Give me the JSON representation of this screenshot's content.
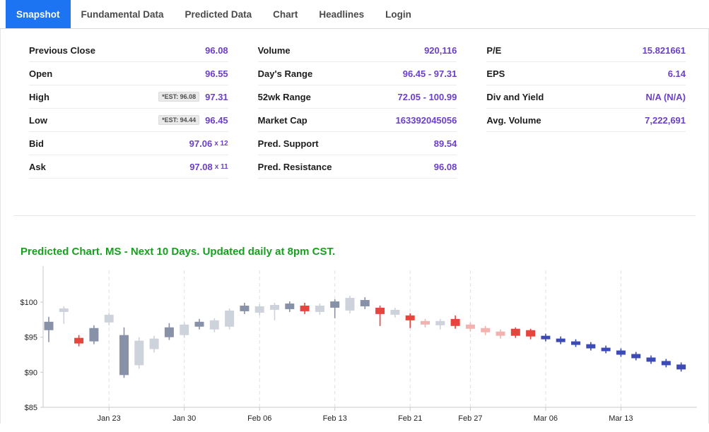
{
  "tabs": [
    {
      "label": "Snapshot",
      "active": true
    },
    {
      "label": "Fundamental Data",
      "active": false
    },
    {
      "label": "Predicted Data",
      "active": false
    },
    {
      "label": "Chart",
      "active": false
    },
    {
      "label": "Headlines",
      "active": false
    },
    {
      "label": "Login",
      "active": false
    }
  ],
  "quote_table": {
    "columns": [
      {
        "rows": [
          {
            "label": "Previous Close",
            "value": "96.08"
          },
          {
            "label": "Open",
            "value": "96.55"
          },
          {
            "label": "High",
            "badge": "*EST: 96.08",
            "value": "97.31"
          },
          {
            "label": "Low",
            "badge": "*EST: 94.44",
            "value": "96.45"
          },
          {
            "label": "Bid",
            "value": "97.06",
            "suffix": "x 12"
          },
          {
            "label": "Ask",
            "value": "97.08",
            "suffix": "x 11"
          }
        ]
      },
      {
        "rows": [
          {
            "label": "Volume",
            "value": "920,116"
          },
          {
            "label": "Day's Range",
            "value": "96.45 - 97.31"
          },
          {
            "label": "52wk Range",
            "value": "72.05 - 100.99"
          },
          {
            "label": "Market Cap",
            "value": "163392045056"
          },
          {
            "label": "Pred. Support",
            "value": "89.54"
          },
          {
            "label": "Pred. Resistance",
            "value": "96.08"
          }
        ]
      },
      {
        "rows": [
          {
            "label": "P/E",
            "value": "15.821661"
          },
          {
            "label": "EPS",
            "value": "6.14"
          },
          {
            "label": "Div and Yield",
            "value": "N/A (N/A)"
          },
          {
            "label": "Avg. Volume",
            "value": "7,222,691"
          }
        ]
      }
    ]
  },
  "colors": {
    "accent_tab": "#1d74f2",
    "value_purple": "#6c3fc9",
    "title_green": "#16a01e"
  },
  "chart_data": {
    "type": "candlestick",
    "title": "Predicted Chart. MS - Next 10 Days. Updated daily at 8pm CST.",
    "ylim": [
      85,
      103
    ],
    "yticks": [
      100,
      95,
      90,
      85
    ],
    "ytick_prefix": "$",
    "grid": "dashed-vertical-weekly",
    "legend": "none",
    "colors": {
      "up": "#cdd2db",
      "dark": "#8792a8",
      "down": "#e6453d",
      "pink": "#f2b3b0",
      "pred": "#3c4ab5"
    },
    "xticks": [
      {
        "index": 4,
        "label": "Jan 23"
      },
      {
        "index": 9,
        "label": "Jan 30"
      },
      {
        "index": 14,
        "label": "Feb 06"
      },
      {
        "index": 19,
        "label": "Feb 13"
      },
      {
        "index": 24,
        "label": "Feb 21"
      },
      {
        "index": 28,
        "label": "Feb 27"
      },
      {
        "index": 33,
        "label": "Mar 06"
      },
      {
        "index": 38,
        "label": "Mar 13"
      }
    ],
    "candles": [
      {
        "o": 96.0,
        "h": 97.9,
        "l": 94.3,
        "c": 97.2,
        "type": "dark"
      },
      {
        "o": 98.6,
        "h": 99.4,
        "l": 96.9,
        "c": 99.1,
        "type": "up"
      },
      {
        "o": 94.9,
        "h": 95.3,
        "l": 93.7,
        "c": 94.1,
        "type": "down"
      },
      {
        "o": 94.4,
        "h": 96.7,
        "l": 94.0,
        "c": 96.3,
        "type": "dark"
      },
      {
        "o": 97.1,
        "h": 98.5,
        "l": 96.7,
        "c": 98.2,
        "type": "up"
      },
      {
        "o": 95.3,
        "h": 96.4,
        "l": 89.2,
        "c": 89.6,
        "type": "dark"
      },
      {
        "o": 91.0,
        "h": 95.0,
        "l": 90.5,
        "c": 94.5,
        "type": "up"
      },
      {
        "o": 93.3,
        "h": 95.2,
        "l": 92.8,
        "c": 94.8,
        "type": "up"
      },
      {
        "o": 95.0,
        "h": 97.0,
        "l": 94.6,
        "c": 96.4,
        "type": "dark"
      },
      {
        "o": 95.3,
        "h": 97.1,
        "l": 94.9,
        "c": 96.8,
        "type": "up"
      },
      {
        "o": 96.5,
        "h": 97.6,
        "l": 96.1,
        "c": 97.2,
        "type": "dark"
      },
      {
        "o": 96.1,
        "h": 97.7,
        "l": 95.7,
        "c": 97.4,
        "type": "up"
      },
      {
        "o": 96.5,
        "h": 99.1,
        "l": 96.1,
        "c": 98.8,
        "type": "up"
      },
      {
        "o": 98.7,
        "h": 99.9,
        "l": 98.3,
        "c": 99.5,
        "type": "dark"
      },
      {
        "o": 98.5,
        "h": 99.7,
        "l": 98.1,
        "c": 99.4,
        "type": "up"
      },
      {
        "o": 98.9,
        "h": 99.9,
        "l": 97.4,
        "c": 99.6,
        "type": "up"
      },
      {
        "o": 99.0,
        "h": 100.1,
        "l": 98.6,
        "c": 99.8,
        "type": "dark"
      },
      {
        "o": 99.5,
        "h": 99.9,
        "l": 98.3,
        "c": 98.7,
        "type": "down"
      },
      {
        "o": 98.6,
        "h": 99.8,
        "l": 98.2,
        "c": 99.5,
        "type": "up"
      },
      {
        "o": 99.2,
        "h": 100.4,
        "l": 97.7,
        "c": 100.1,
        "type": "dark"
      },
      {
        "o": 98.8,
        "h": 100.9,
        "l": 98.4,
        "c": 100.6,
        "type": "up"
      },
      {
        "o": 100.3,
        "h": 100.7,
        "l": 99.0,
        "c": 99.4,
        "type": "dark"
      },
      {
        "o": 99.2,
        "h": 99.5,
        "l": 96.6,
        "c": 98.3,
        "type": "down"
      },
      {
        "o": 98.2,
        "h": 99.2,
        "l": 97.8,
        "c": 98.9,
        "type": "up"
      },
      {
        "o": 98.1,
        "h": 98.4,
        "l": 96.3,
        "c": 97.4,
        "type": "down"
      },
      {
        "o": 97.3,
        "h": 97.6,
        "l": 96.4,
        "c": 96.8,
        "type": "pink"
      },
      {
        "o": 96.7,
        "h": 97.6,
        "l": 96.1,
        "c": 97.3,
        "type": "up"
      },
      {
        "o": 97.6,
        "h": 98.1,
        "l": 96.2,
        "c": 96.6,
        "type": "down"
      },
      {
        "o": 96.8,
        "h": 97.1,
        "l": 95.8,
        "c": 96.2,
        "type": "pink"
      },
      {
        "o": 96.3,
        "h": 96.6,
        "l": 95.3,
        "c": 95.7,
        "type": "pink"
      },
      {
        "o": 95.8,
        "h": 96.1,
        "l": 94.8,
        "c": 95.2,
        "type": "pink"
      },
      {
        "o": 96.2,
        "h": 96.4,
        "l": 94.9,
        "c": 95.2,
        "type": "down"
      },
      {
        "o": 96.0,
        "h": 96.2,
        "l": 94.7,
        "c": 95.1,
        "type": "down"
      },
      {
        "o": 95.2,
        "h": 95.5,
        "l": 94.4,
        "c": 94.7,
        "type": "pred"
      },
      {
        "o": 94.8,
        "h": 95.1,
        "l": 94.0,
        "c": 94.3,
        "type": "pred"
      },
      {
        "o": 94.4,
        "h": 94.7,
        "l": 93.6,
        "c": 93.9,
        "type": "pred"
      },
      {
        "o": 94.0,
        "h": 94.3,
        "l": 93.1,
        "c": 93.4,
        "type": "pred"
      },
      {
        "o": 93.5,
        "h": 93.8,
        "l": 92.7,
        "c": 93.0,
        "type": "pred"
      },
      {
        "o": 93.1,
        "h": 93.4,
        "l": 92.2,
        "c": 92.5,
        "type": "pred"
      },
      {
        "o": 92.6,
        "h": 92.9,
        "l": 91.7,
        "c": 92.0,
        "type": "pred"
      },
      {
        "o": 92.1,
        "h": 92.4,
        "l": 91.2,
        "c": 91.5,
        "type": "pred"
      },
      {
        "o": 91.6,
        "h": 91.9,
        "l": 90.7,
        "c": 91.0,
        "type": "pred"
      },
      {
        "o": 91.1,
        "h": 91.4,
        "l": 90.1,
        "c": 90.4,
        "type": "pred"
      }
    ]
  }
}
